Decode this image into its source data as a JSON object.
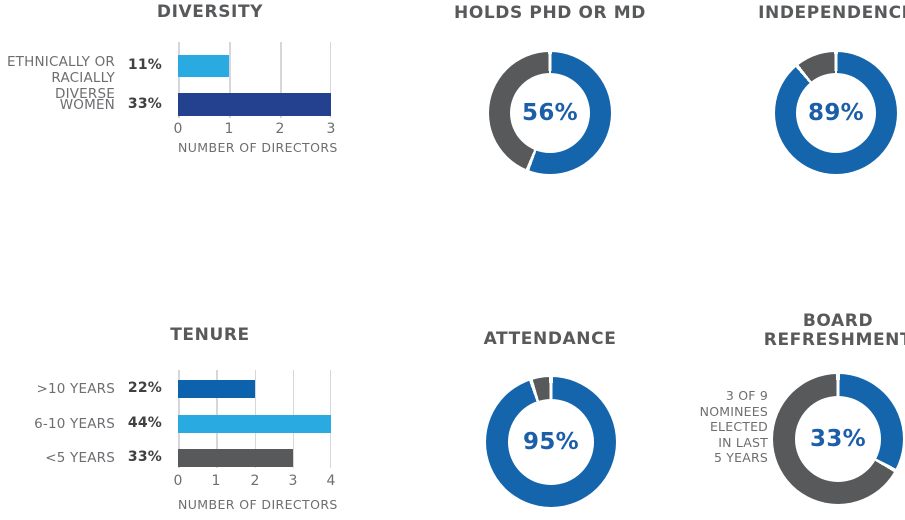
{
  "colors": {
    "donut_blue": "#1565AD",
    "light_blue": "#29ABE2",
    "navy": "#24418F",
    "medium_blue": "#0D62AE",
    "dark_gray": "#58595B",
    "label_gray": "#6D6E71",
    "value_text": "#414042",
    "gridline": "#D6D7D9",
    "donut_center_text": "#1C5FA8"
  },
  "chart_data": [
    {
      "type": "bar",
      "orientation": "horizontal",
      "title": "DIVERSITY",
      "xlabel": "NUMBER OF DIRECTORS",
      "xlim": [
        0,
        3
      ],
      "tick_labels": [
        "0",
        "1",
        "2",
        "3"
      ],
      "grid": true,
      "categories": [
        "ETHNICALLY OR RACIALLY DIVERSE",
        "WOMEN"
      ],
      "category_lines": [
        [
          "ETHNICALLY OR",
          "RACIALLY DIVERSE"
        ],
        [
          "WOMEN"
        ]
      ],
      "values": [
        1,
        3
      ],
      "value_labels": [
        "11%",
        "33%"
      ],
      "bar_colors": [
        "#29ABE2",
        "#24418F"
      ]
    },
    {
      "type": "donut",
      "title": "HOLDS PHD OR MD",
      "value_pct": 56,
      "center_label": "56%",
      "segments": [
        {
          "name": "holds phd or md",
          "pct": 56,
          "color": "#1565AD"
        },
        {
          "name": "other",
          "pct": 44,
          "color": "#58595B"
        }
      ]
    },
    {
      "type": "donut",
      "title": "INDEPENDENCE",
      "value_pct": 89,
      "center_label": "89%",
      "segments": [
        {
          "name": "independent",
          "pct": 89,
          "color": "#1565AD"
        },
        {
          "name": "not independent",
          "pct": 11,
          "color": "#58595B"
        }
      ]
    },
    {
      "type": "bar",
      "orientation": "horizontal",
      "title": "TENURE",
      "xlabel": "NUMBER OF DIRECTORS",
      "xlim": [
        0,
        4
      ],
      "tick_labels": [
        "0",
        "1",
        "2",
        "3",
        "4"
      ],
      "grid": true,
      "categories": [
        ">10 YEARS",
        "6-10 YEARS",
        "<5 YEARS"
      ],
      "values": [
        2,
        4,
        3
      ],
      "value_labels": [
        "22%",
        "44%",
        "33%"
      ],
      "bar_colors": [
        "#0D62AE",
        "#29ABE2",
        "#58595B"
      ]
    },
    {
      "type": "donut",
      "title": "ATTENDANCE",
      "value_pct": 95,
      "center_label": "95%",
      "segments": [
        {
          "name": "attendance",
          "pct": 95,
          "color": "#1565AD"
        },
        {
          "name": "other",
          "pct": 5,
          "color": "#58595B"
        }
      ]
    },
    {
      "type": "donut",
      "title": "BOARD REFRESHMENT",
      "title_lines": [
        "BOARD",
        "REFRESHMENT"
      ],
      "value_pct": 33,
      "center_label": "33%",
      "annotation": "3 OF 9 NOMINEES ELECTED IN LAST 5 YEARS",
      "annotation_lines": [
        "3 OF 9",
        "NOMINEES",
        "ELECTED",
        "IN LAST",
        "5 YEARS"
      ],
      "segments": [
        {
          "name": "elected in last 5 years",
          "pct": 33,
          "color": "#1565AD"
        },
        {
          "name": "other",
          "pct": 67,
          "color": "#58595B"
        }
      ]
    }
  ]
}
